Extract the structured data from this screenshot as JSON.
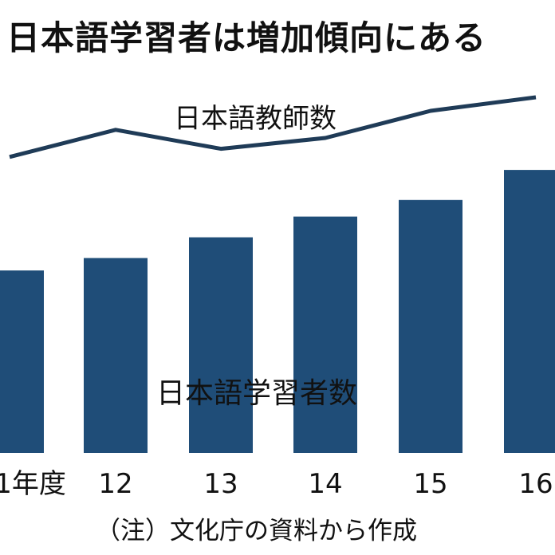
{
  "title": "日本語学習者は増加傾向にある",
  "note": "（注）文化庁の資料から作成",
  "colors": {
    "bar": "#1f4d78",
    "line": "#1f3b57",
    "text": "#111111"
  },
  "chart_data": {
    "type": "bar",
    "categories": [
      "1年度",
      "12",
      "13",
      "14",
      "15",
      "16"
    ],
    "series": [
      {
        "name": "日本語学習者数",
        "type": "bar",
        "values": [
          176,
          188,
          208,
          228,
          244,
          273
        ]
      },
      {
        "name": "日本語教師数",
        "type": "line",
        "values": [
          48,
          58,
          51,
          55,
          65,
          70
        ]
      }
    ],
    "ylim": [
      0,
      300
    ],
    "grid": false,
    "legend": "inline-labels"
  }
}
